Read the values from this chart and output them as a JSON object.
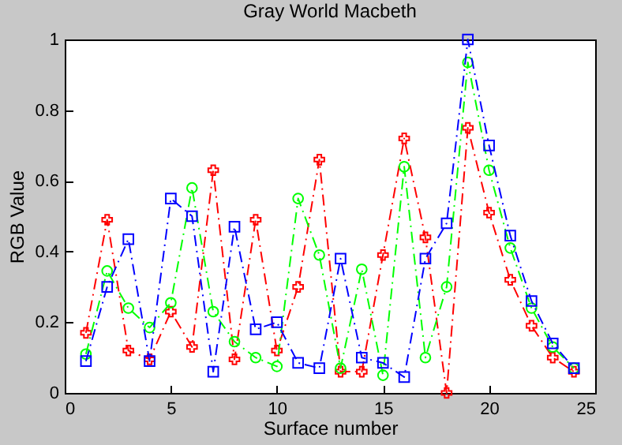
{
  "chart_data": {
    "type": "line",
    "title": "Gray World Macbeth",
    "xlabel": "Surface number",
    "ylabel": "RGB Value",
    "x": [
      1,
      2,
      3,
      4,
      5,
      6,
      7,
      8,
      9,
      10,
      11,
      12,
      13,
      14,
      15,
      16,
      17,
      18,
      19,
      20,
      21,
      22,
      23,
      24
    ],
    "series": [
      {
        "color": "#ff0000",
        "marker": "cross",
        "values": [
          0.17,
          0.49,
          0.12,
          0.095,
          0.23,
          0.13,
          0.63,
          0.095,
          0.49,
          0.12,
          0.3,
          0.66,
          0.06,
          0.06,
          0.39,
          0.72,
          0.44,
          0,
          0.75,
          0.51,
          0.32,
          0.19,
          0.1,
          0.06
        ]
      },
      {
        "color": "#00ff00",
        "marker": "circle",
        "values": [
          0.11,
          0.345,
          0.24,
          0.185,
          0.255,
          0.58,
          0.23,
          0.145,
          0.1,
          0.075,
          0.55,
          0.39,
          0.07,
          0.35,
          0.05,
          0.64,
          0.1,
          0.3,
          0.935,
          0.63,
          0.41,
          0.24,
          0.13,
          0.07
        ]
      },
      {
        "color": "#0000ff",
        "marker": "square",
        "values": [
          0.09,
          0.3,
          0.435,
          0.09,
          0.55,
          0.5,
          0.06,
          0.47,
          0.18,
          0.2,
          0.085,
          0.07,
          0.38,
          0.1,
          0.085,
          0.045,
          0.38,
          0.48,
          1.0,
          0.7,
          0.445,
          0.26,
          0.14,
          0.07
        ]
      }
    ],
    "xlim": [
      0,
      25
    ],
    "xticks": [
      0,
      5,
      10,
      15,
      20,
      25
    ],
    "ylim": [
      0,
      1
    ],
    "yticks": [
      0,
      0.2,
      0.4,
      0.6,
      0.8,
      1
    ],
    "line_style": "dashed",
    "grid": false
  }
}
